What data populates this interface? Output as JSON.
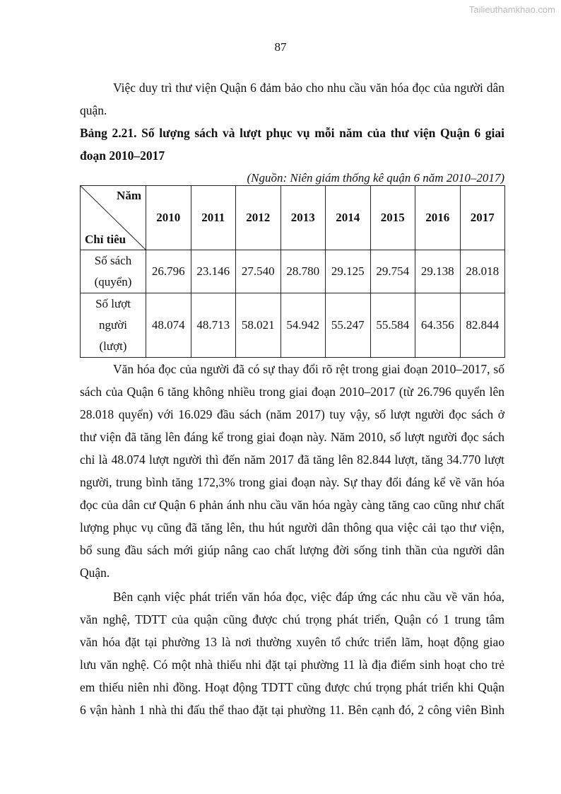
{
  "watermark": "Tailieuthamkhao.com",
  "page_number": "87",
  "intro": [
    "Việc duy trì thư viện Quận 6 đảm bảo cho nhu cầu văn hóa đọc của người dân",
    "quận."
  ],
  "caption": [
    "Bảng 2.21. Số lượng sách và lượt phục vụ mỗi năm của thư viện Quận 6 giai",
    "đoạn 2010–2017"
  ],
  "source": "(Nguồn: Niên giám thống kê quận 6 năm 2010–2017)",
  "table": {
    "corner_top": "Năm",
    "corner_bottom": "Chỉ tiêu",
    "years": [
      "2010",
      "2011",
      "2012",
      "2013",
      "2014",
      "2015",
      "2016",
      "2017"
    ],
    "rows": [
      {
        "label": [
          "Số sách",
          "(quyển)"
        ],
        "values": [
          "26.796",
          "23.146",
          "27.540",
          "28.780",
          "29.125",
          "29.754",
          "29.138",
          "28.018"
        ]
      },
      {
        "label": [
          "Số lượt",
          "người",
          "(lượt)"
        ],
        "values": [
          "48.074",
          "48.713",
          "58.021",
          "54.942",
          "55.247",
          "55.584",
          "64.356",
          "82.844"
        ]
      }
    ]
  },
  "para1": [
    "Văn hóa đọc của người đã có sự thay đổi rõ rệt trong giai đoạn 2010–2017, số",
    "sách của Quận 6 tăng không nhiều trong giai đoạn 2010–2017 (từ 26.796 quyển lên",
    "28.018 quyển) với 16.029 đầu sách (năm 2017) tuy vậy, số lượt người đọc sách ở",
    "thư viện đã tăng lên đáng kể trong giai đoạn này. Năm 2010, số lượt người đọc sách",
    "chỉ là 48.074 lượt người thì đến năm 2017 đã tăng lên 82.844 lượt, tăng 34.770 lượt",
    "người, trung bình tăng 172,3% trong giai đoạn này. Sự thay đổi đáng kể về văn hóa",
    "đọc của dân cư Quận 6 phản ánh nhu cầu văn hóa ngày càng tăng cao cũng như chất",
    "lượng phục vụ cũng đã tăng lên, thu hút người dân thông qua việc cải tạo thư viện,",
    "bổ sung đầu sách mới giúp nâng cao chất lượng đời sống tinh thần của người dân",
    "Quận."
  ],
  "para2": [
    "Bên cạnh việc phát triển văn hóa đọc, việc đáp ứng các nhu cầu về văn hóa,",
    "văn nghệ, TDTT của quận cũng được chú trọng phát triển, Quận có 1 trung tâm",
    "văn hóa đặt tại phường 13 là nơi thường xuyên tổ chức triển lãm, hoạt động giao",
    "lưu văn nghệ. Có một nhà thiếu nhi đặt tại phường 11 là địa điểm sinh hoạt cho trẻ",
    "em thiếu niên nhi đồng. Hoạt động TDTT cũng được chú trọng phát triển khi Quận",
    "6 vận hành 1 nhà thi đấu thể thao đặt tại phường 11. Bên cạnh đó, 2 công viên Bình"
  ]
}
